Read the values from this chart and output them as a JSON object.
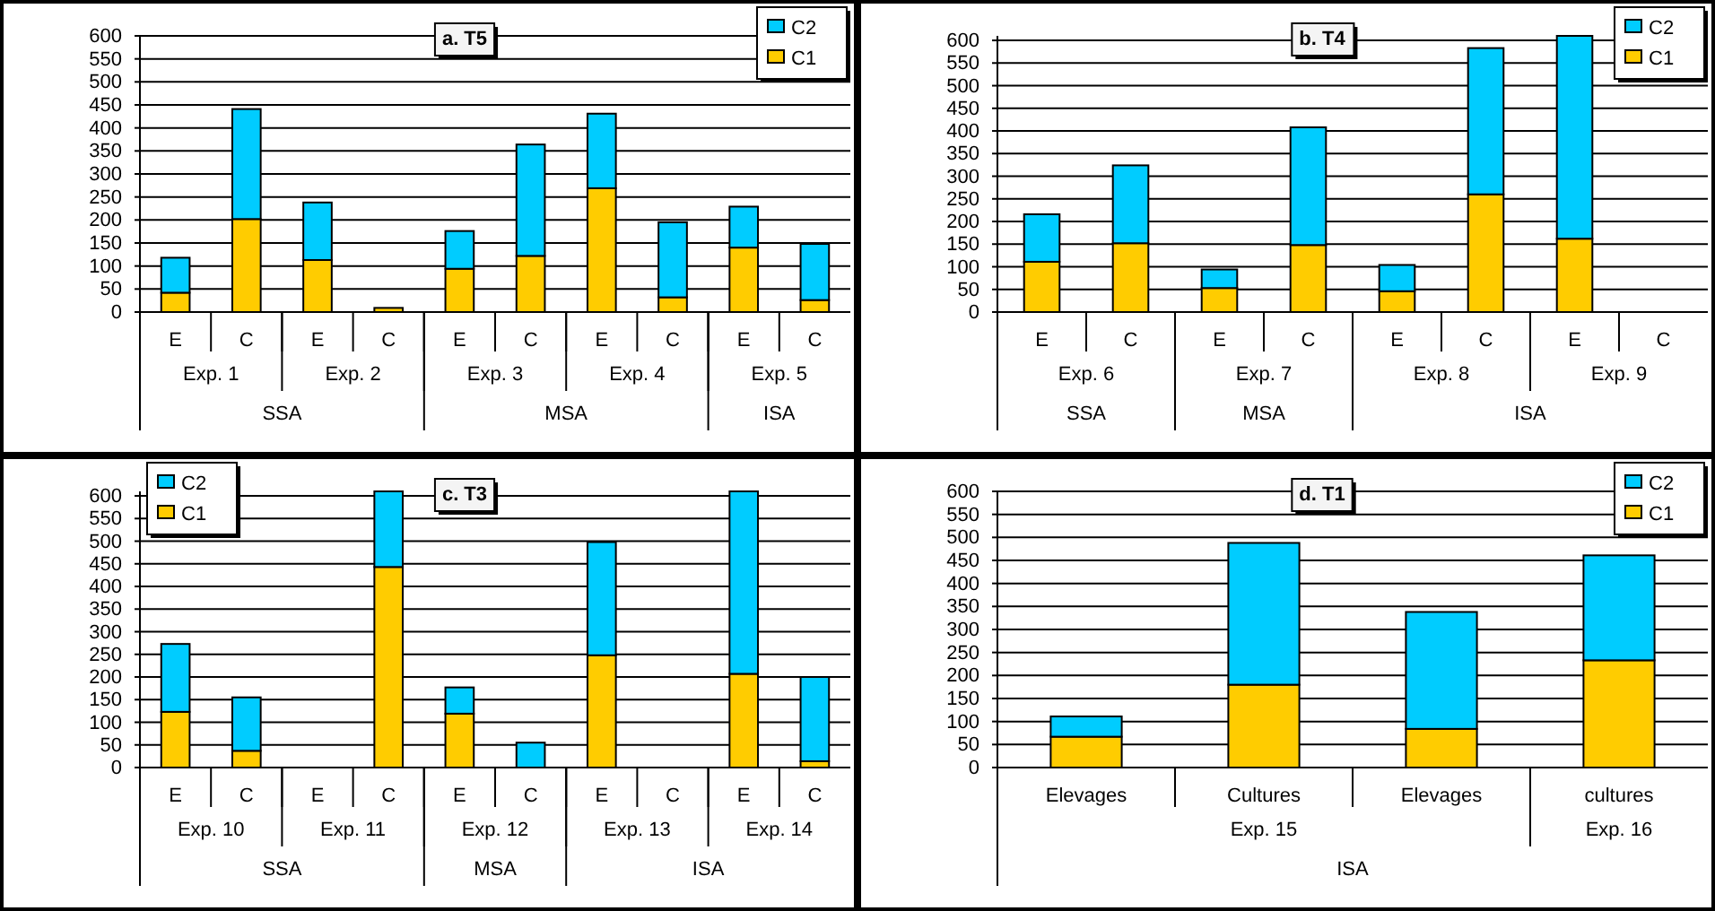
{
  "chart_data": [
    {
      "type": "bar",
      "title": "a. T5",
      "stacked": true,
      "grid": "y",
      "legend": "top right",
      "categories": [
        "E",
        "C",
        "E",
        "C",
        "E",
        "C",
        "E",
        "C",
        "E",
        "C"
      ],
      "series": [
        {
          "name": "C1",
          "color": "#ffcc00",
          "values": [
            42,
            202,
            113,
            9,
            94,
            122,
            269,
            32,
            140,
            26
          ]
        },
        {
          "name": "C2",
          "color": "#00ccff",
          "values": [
            76,
            239,
            125,
            0,
            82,
            242,
            162,
            163,
            89,
            122
          ]
        }
      ],
      "ylim": [
        0,
        600
      ],
      "yticks": [
        0,
        50,
        100,
        150,
        200,
        250,
        300,
        350,
        400,
        450,
        500,
        550,
        600
      ],
      "annotations": [
        "Exp. 1",
        "Exp. 2",
        "Exp. 3",
        "Exp. 4",
        "Exp. 5",
        "SSA",
        "MSA",
        "ISA"
      ]
    },
    {
      "type": "bar",
      "title": "b. T4",
      "stacked": true,
      "grid": "y",
      "legend": "top right",
      "categories": [
        "E",
        "C",
        "E",
        "C",
        "E",
        "C",
        "E",
        "C"
      ],
      "series": [
        {
          "name": "C1",
          "color": "#ffcc00",
          "values": [
            111,
            152,
            53,
            148,
            46,
            260,
            162,
            null
          ]
        },
        {
          "name": "C2",
          "color": "#00ccff",
          "values": [
            105,
            172,
            41,
            260,
            58,
            323,
            448,
            null
          ]
        }
      ],
      "ylim": [
        0,
        610
      ],
      "yticks": [
        0,
        50,
        100,
        150,
        200,
        250,
        300,
        350,
        400,
        450,
        500,
        550,
        600
      ],
      "annotations": [
        "Exp. 6",
        "Exp. 7",
        "Exp. 8",
        "Exp. 9",
        "SSA",
        "MSA",
        "ISA"
      ]
    },
    {
      "type": "bar",
      "title": "c. T3",
      "stacked": true,
      "grid": "y",
      "legend": "top left",
      "categories": [
        "E",
        "C",
        "E",
        "C",
        "E",
        "C",
        "E",
        "C",
        "E",
        "C"
      ],
      "series": [
        {
          "name": "C1",
          "color": "#ffcc00",
          "values": [
            123,
            37,
            null,
            443,
            119,
            0,
            248,
            null,
            207,
            14
          ]
        },
        {
          "name": "C2",
          "color": "#00ccff",
          "values": [
            150,
            118,
            null,
            167,
            58,
            55,
            250,
            null,
            403,
            186
          ]
        }
      ],
      "ylim": [
        0,
        610
      ],
      "yticks": [
        0,
        50,
        100,
        150,
        200,
        250,
        300,
        350,
        400,
        450,
        500,
        550,
        600
      ],
      "annotations": [
        "Exp. 10",
        "Exp. 11",
        "Exp. 12",
        "Exp. 13",
        "Exp. 14",
        "SSA",
        "MSA",
        "ISA"
      ]
    },
    {
      "type": "bar",
      "title": "d. T1",
      "stacked": true,
      "grid": "y",
      "legend": "top right",
      "categories": [
        "Elevages",
        "Cultures",
        "Elevages",
        "cultures"
      ],
      "series": [
        {
          "name": "C1",
          "color": "#ffcc00",
          "values": [
            67,
            180,
            84,
            233
          ]
        },
        {
          "name": "C2",
          "color": "#00ccff",
          "values": [
            44,
            308,
            254,
            228
          ]
        }
      ],
      "ylim": [
        0,
        600
      ],
      "yticks": [
        0,
        50,
        100,
        150,
        200,
        250,
        300,
        350,
        400,
        450,
        500,
        550,
        600
      ],
      "annotations": [
        "Exp. 15",
        "Exp. 16",
        "ISA"
      ]
    }
  ]
}
